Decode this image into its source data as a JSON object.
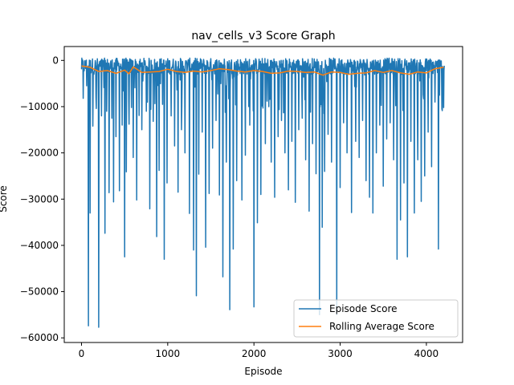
{
  "chart_data": {
    "type": "line",
    "title": "nav_cells_v3 Score Graph",
    "xlabel": "Episode",
    "ylabel": "Score",
    "xlim": [
      -200,
      4420
    ],
    "ylim": [
      -61000,
      3000
    ],
    "xticks": [
      0,
      1000,
      2000,
      3000,
      4000
    ],
    "yticks": [
      0,
      -10000,
      -20000,
      -30000,
      -40000,
      -50000,
      -60000
    ],
    "xtick_labels": [
      "0",
      "1000",
      "2000",
      "3000",
      "4000"
    ],
    "ytick_labels": [
      "0",
      "−10000",
      "−20000",
      "−30000",
      "−40000",
      "−50000",
      "−60000"
    ],
    "grid": false,
    "legend_position": "lower-right",
    "episodes": 4210,
    "series": [
      {
        "name": "Episode Score",
        "color": "#1f77b4",
        "baseline_band": [
          -3000,
          500
        ],
        "spikes": [
          [
            20,
            -8200
          ],
          [
            60,
            -5500
          ],
          [
            80,
            -57400
          ],
          [
            100,
            -33000
          ],
          [
            130,
            -14200
          ],
          [
            170,
            -10400
          ],
          [
            200,
            -57700
          ],
          [
            230,
            -12000
          ],
          [
            270,
            -37400
          ],
          [
            290,
            -11000
          ],
          [
            320,
            -28600
          ],
          [
            350,
            -12500
          ],
          [
            370,
            -30600
          ],
          [
            400,
            -16500
          ],
          [
            440,
            -28200
          ],
          [
            470,
            -14000
          ],
          [
            500,
            -42500
          ],
          [
            520,
            -24100
          ],
          [
            550,
            -13800
          ],
          [
            580,
            -10200
          ],
          [
            600,
            -21000
          ],
          [
            640,
            -30200
          ],
          [
            700,
            -15000
          ],
          [
            750,
            -11000
          ],
          [
            790,
            -32100
          ],
          [
            830,
            -13200
          ],
          [
            870,
            -38100
          ],
          [
            900,
            -23800
          ],
          [
            940,
            -9500
          ],
          [
            960,
            -43000
          ],
          [
            990,
            -26500
          ],
          [
            1040,
            -12000
          ],
          [
            1080,
            -18500
          ],
          [
            1120,
            -28500
          ],
          [
            1160,
            -15000
          ],
          [
            1200,
            -20000
          ],
          [
            1250,
            -33100
          ],
          [
            1300,
            -41000
          ],
          [
            1330,
            -50900
          ],
          [
            1360,
            -24600
          ],
          [
            1400,
            -15500
          ],
          [
            1440,
            -40400
          ],
          [
            1480,
            -28800
          ],
          [
            1520,
            -19000
          ],
          [
            1560,
            -13000
          ],
          [
            1600,
            -29100
          ],
          [
            1640,
            -46800
          ],
          [
            1680,
            -22000
          ],
          [
            1720,
            -53900
          ],
          [
            1760,
            -40800
          ],
          [
            1800,
            -26000
          ],
          [
            1860,
            -30200
          ],
          [
            1900,
            -20500
          ],
          [
            1950,
            -14000
          ],
          [
            2000,
            -53300
          ],
          [
            2040,
            -35100
          ],
          [
            2080,
            -29000
          ],
          [
            2130,
            -18000
          ],
          [
            2170,
            -10000
          ],
          [
            2200,
            -22000
          ],
          [
            2240,
            -29600
          ],
          [
            2280,
            -16500
          ],
          [
            2320,
            -13000
          ],
          [
            2360,
            -20000
          ],
          [
            2400,
            -28000
          ],
          [
            2440,
            -17500
          ],
          [
            2480,
            -30700
          ],
          [
            2520,
            -15000
          ],
          [
            2560,
            -12500
          ],
          [
            2600,
            -21500
          ],
          [
            2640,
            -32600
          ],
          [
            2680,
            -18000
          ],
          [
            2720,
            -24500
          ],
          [
            2760,
            -55000
          ],
          [
            2790,
            -36100
          ],
          [
            2820,
            -24000
          ],
          [
            2860,
            -16000
          ],
          [
            2900,
            -22000
          ],
          [
            2960,
            -55000
          ],
          [
            3000,
            -27500
          ],
          [
            3040,
            -13500
          ],
          [
            3080,
            -20000
          ],
          [
            3130,
            -32900
          ],
          [
            3180,
            -17500
          ],
          [
            3220,
            -21000
          ],
          [
            3260,
            -13000
          ],
          [
            3300,
            -26000
          ],
          [
            3340,
            -29600
          ],
          [
            3380,
            -33000
          ],
          [
            3420,
            -20000
          ],
          [
            3460,
            -14000
          ],
          [
            3500,
            -27200
          ],
          [
            3540,
            -17000
          ],
          [
            3580,
            -13500
          ],
          [
            3620,
            -21500
          ],
          [
            3660,
            -43000
          ],
          [
            3700,
            -34500
          ],
          [
            3740,
            -26500
          ],
          [
            3780,
            -42500
          ],
          [
            3820,
            -17500
          ],
          [
            3860,
            -33000
          ],
          [
            3900,
            -21500
          ],
          [
            3940,
            -30500
          ],
          [
            3980,
            -25000
          ],
          [
            4020,
            -15500
          ],
          [
            4060,
            -23000
          ],
          [
            4100,
            -9000
          ],
          [
            4140,
            -40800
          ],
          [
            4180,
            -10500
          ],
          [
            4200,
            -10200
          ]
        ]
      },
      {
        "name": "Rolling Average Score",
        "color": "#ff7f0e",
        "x": [
          0,
          100,
          200,
          300,
          400,
          500,
          550,
          600,
          700,
          800,
          900,
          1000,
          1100,
          1200,
          1300,
          1400,
          1500,
          1600,
          1700,
          1800,
          1900,
          2000,
          2100,
          2200,
          2300,
          2400,
          2500,
          2600,
          2700,
          2800,
          2900,
          3000,
          3100,
          3200,
          3300,
          3400,
          3500,
          3600,
          3700,
          3800,
          3900,
          4000,
          4100,
          4200
        ],
        "values": [
          -1200,
          -1500,
          -2400,
          -2200,
          -2800,
          -2100,
          -2900,
          -1400,
          -2600,
          -2500,
          -2400,
          -1900,
          -2400,
          -2600,
          -2300,
          -2500,
          -2200,
          -1800,
          -2000,
          -2300,
          -2500,
          -2200,
          -2400,
          -2800,
          -2700,
          -2300,
          -2400,
          -2600,
          -2500,
          -3200,
          -2500,
          -2600,
          -3000,
          -2800,
          -2700,
          -2200,
          -2600,
          -2200,
          -2700,
          -3000,
          -2500,
          -2700,
          -1800,
          -1500
        ]
      }
    ]
  }
}
